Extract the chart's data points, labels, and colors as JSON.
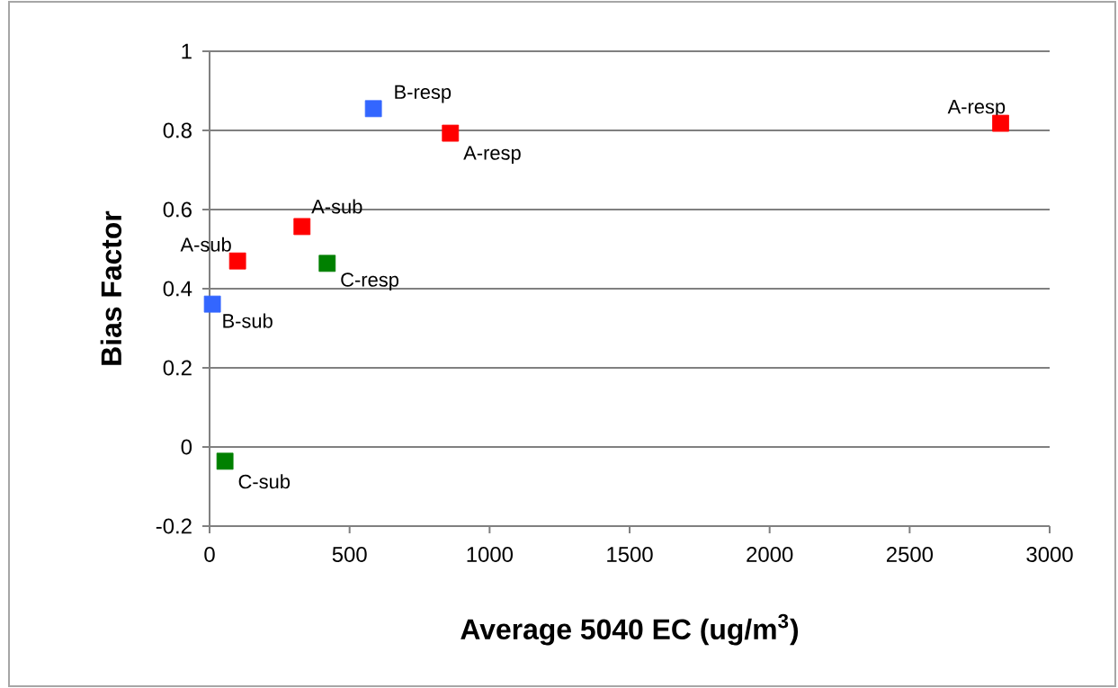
{
  "chart_data": {
    "type": "scatter",
    "xlabel": "Average 5040 EC (ug/m$^{3}$)",
    "ylabel": "Bias Factor",
    "xlim": [
      0,
      3000
    ],
    "xticks": [
      0,
      500,
      1000,
      1500,
      2000,
      2500,
      3000
    ],
    "ylim": [
      -0.2,
      1
    ],
    "yticks": [
      -0.2,
      0,
      0.2,
      0.4,
      0.6,
      0.8,
      1
    ],
    "grid": "y",
    "marker": "square",
    "series": [
      {
        "color": "#ff0000",
        "x": [
          100,
          330
        ],
        "values": [
          0.47,
          0.557
        ]
      },
      {
        "color": "#ff0000",
        "x": [
          860,
          2825
        ],
        "values": [
          0.793,
          0.818
        ]
      },
      {
        "color": "#3366ff",
        "x": [
          10
        ],
        "values": [
          0.361
        ]
      },
      {
        "color": "#3366ff",
        "x": [
          585
        ],
        "values": [
          0.855
        ]
      },
      {
        "color": "#008000",
        "x": [
          55
        ],
        "values": [
          -0.036
        ]
      },
      {
        "color": "#008000",
        "x": [
          420
        ],
        "values": [
          0.464
        ]
      }
    ],
    "annotations": [
      {
        "text": "A-sub",
        "x": 100,
        "y": 0.47
      },
      {
        "text": "A-sub",
        "x": 330,
        "y": 0.557
      },
      {
        "text": "A-resp",
        "x": 860,
        "y": 0.793
      },
      {
        "text": "A-resp",
        "x": 2825,
        "y": 0.818
      },
      {
        "text": "B-sub",
        "x": 10,
        "y": 0.361
      },
      {
        "text": "B-resp",
        "x": 585,
        "y": 0.855
      },
      {
        "text": "C-sub",
        "x": 55,
        "y": -0.036
      },
      {
        "text": "C-resp",
        "x": 420,
        "y": 0.464
      }
    ]
  }
}
